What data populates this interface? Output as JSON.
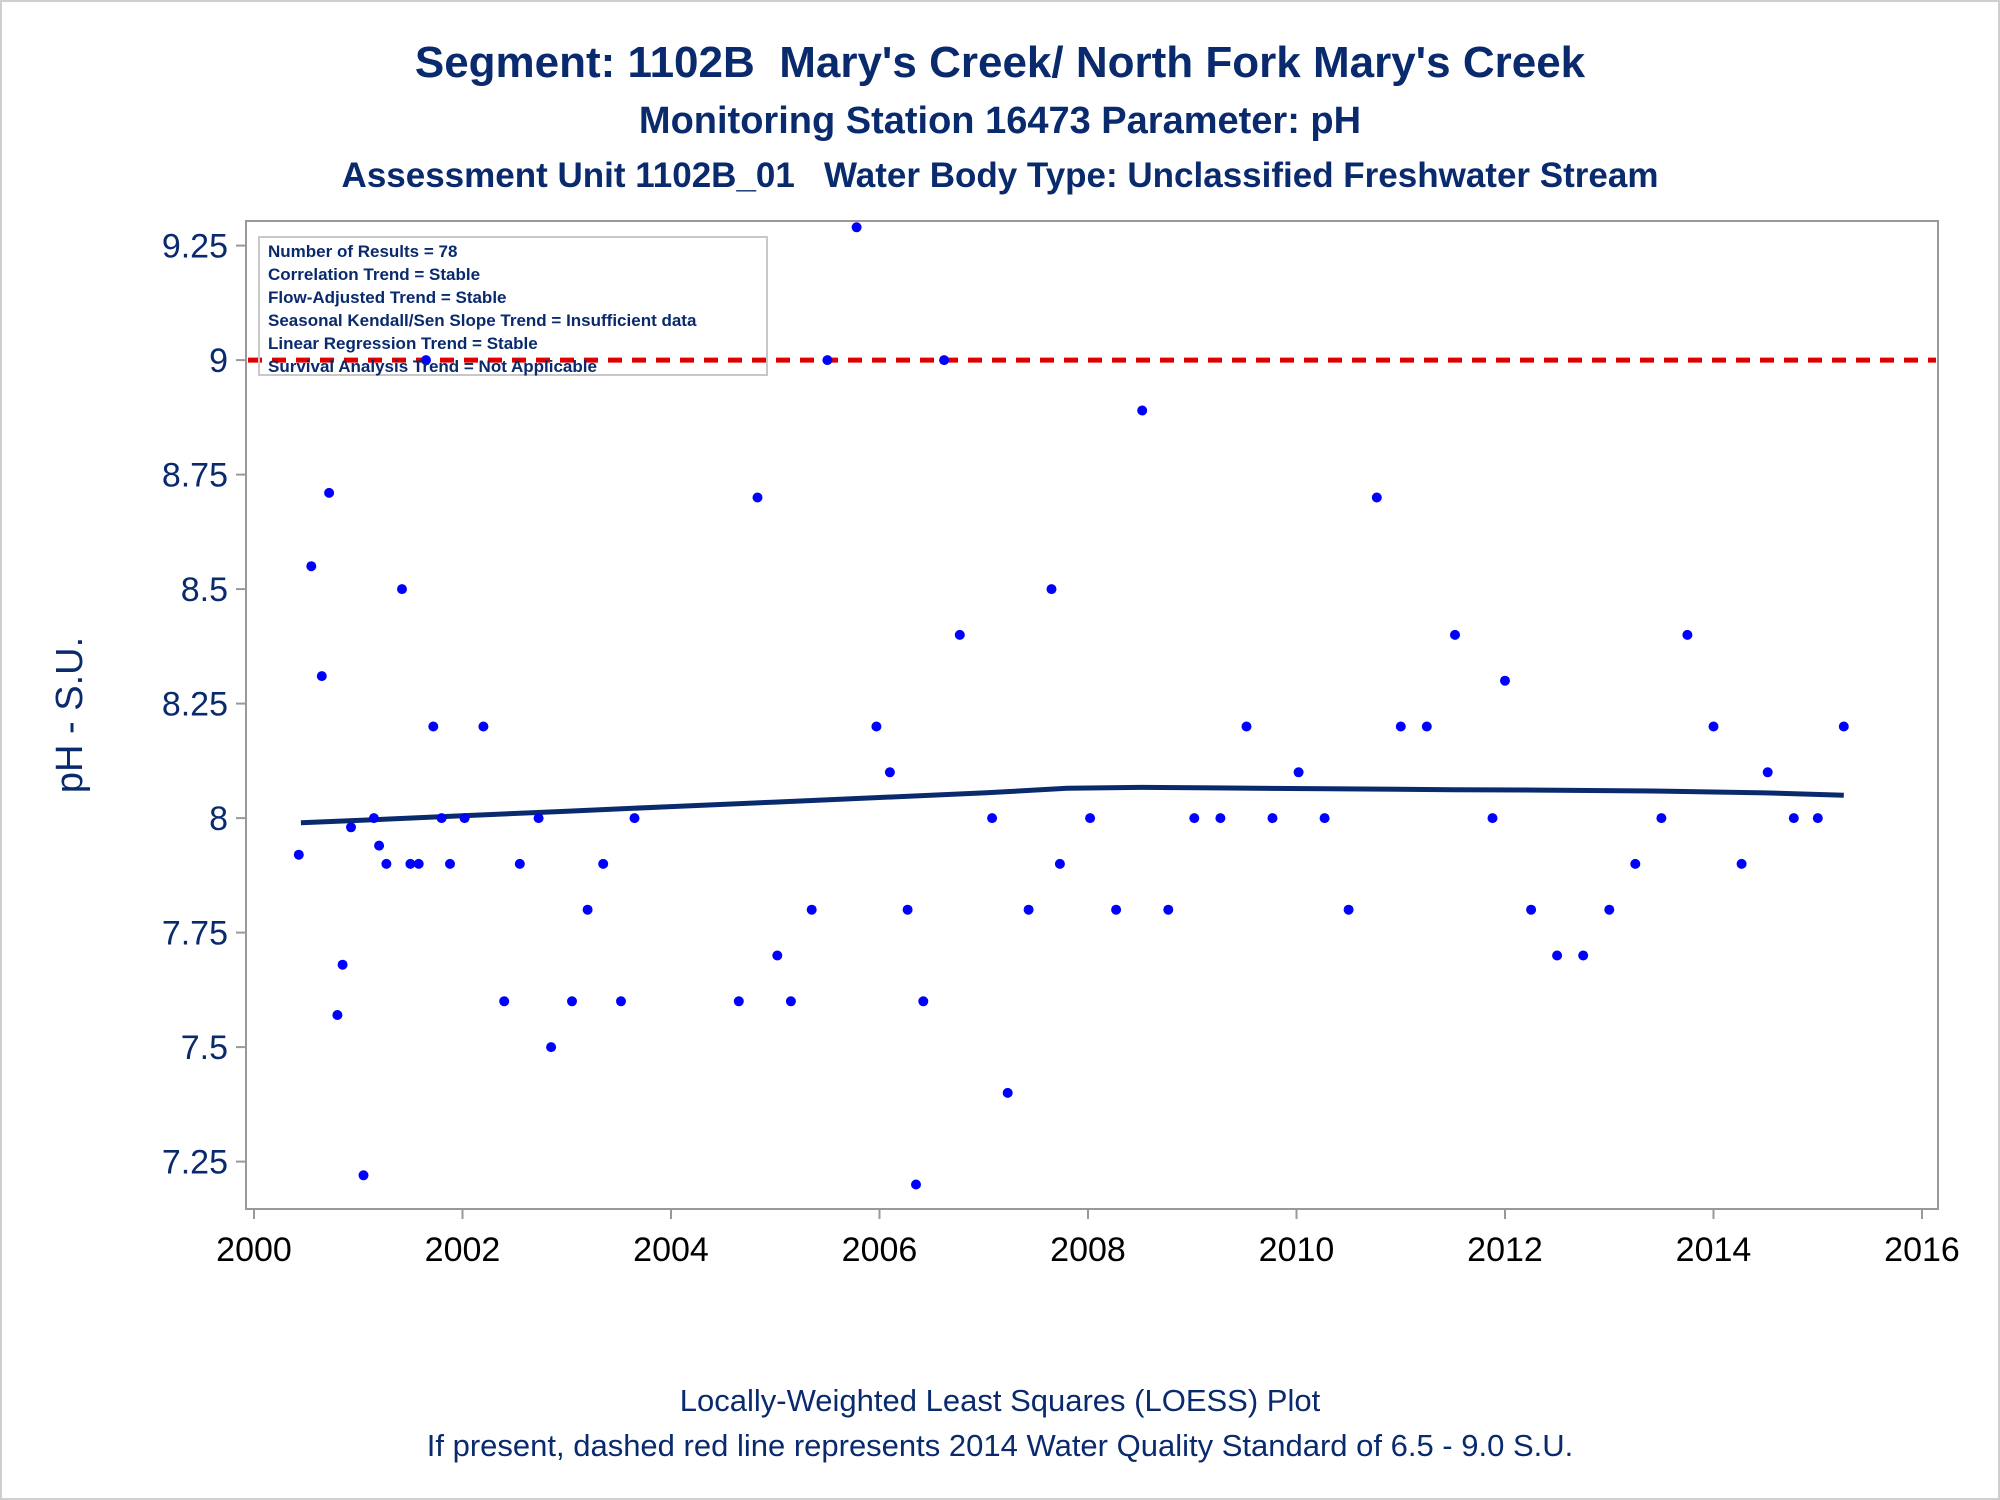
{
  "title": {
    "line1": "Segment: 1102B  Mary's Creek/ North Fork Mary's Creek",
    "line2": "Monitoring Station 16473 Parameter: pH",
    "line3": "Assessment Unit 1102B_01   Water Body Type: Unclassified Freshwater Stream"
  },
  "stats": [
    "Number of Results = 78",
    "Correlation Trend = Stable",
    "Flow-Adjusted Trend = Stable",
    "Seasonal Kendall/Sen Slope Trend = Insufficient data",
    "Linear Regression Trend = Stable",
    "Survival Analysis Trend = Not Applicable"
  ],
  "footnote": {
    "line1": "Locally-Weighted Least Squares (LOESS) Plot",
    "line2": "If present, dashed red line represents 2014 Water Quality Standard of 6.5 - 9.0 S.U."
  },
  "colors": {
    "text": "#0a2a6e",
    "points": "#0000ff",
    "loess": "#0a2a6e",
    "standard_line": "#e00000",
    "axis": "#999999"
  },
  "chart_data": {
    "type": "scatter",
    "xlabel": "",
    "ylabel": "pH - S.U.",
    "xlim": [
      2000,
      2016
    ],
    "ylim": [
      7.17,
      9.33
    ],
    "x_ticks": [
      "2000",
      "2002",
      "2004",
      "2006",
      "2008",
      "2010",
      "2012",
      "2014",
      "2016"
    ],
    "y_ticks": [
      "7.25",
      "7.5",
      "7.75",
      "8",
      "8.25",
      "8.5",
      "8.75",
      "9",
      "9.25"
    ],
    "grid": false,
    "reference_line": {
      "y": 9.0,
      "style": "dashed"
    },
    "points": [
      [
        2000.43,
        7.92
      ],
      [
        2000.55,
        8.55
      ],
      [
        2000.65,
        8.31
      ],
      [
        2000.72,
        8.71
      ],
      [
        2000.8,
        7.57
      ],
      [
        2000.85,
        7.68
      ],
      [
        2000.93,
        7.98
      ],
      [
        2001.05,
        7.22
      ],
      [
        2001.15,
        8.0
      ],
      [
        2001.2,
        7.94
      ],
      [
        2001.27,
        7.9
      ],
      [
        2001.42,
        8.5
      ],
      [
        2001.5,
        7.9
      ],
      [
        2001.58,
        7.9
      ],
      [
        2001.65,
        9.0
      ],
      [
        2001.72,
        8.2
      ],
      [
        2001.8,
        8.0
      ],
      [
        2001.88,
        7.9
      ],
      [
        2002.02,
        8.0
      ],
      [
        2002.2,
        8.2
      ],
      [
        2002.4,
        7.6
      ],
      [
        2002.55,
        7.9
      ],
      [
        2002.73,
        8.0
      ],
      [
        2002.85,
        7.5
      ],
      [
        2003.05,
        7.6
      ],
      [
        2003.2,
        7.8
      ],
      [
        2003.35,
        7.9
      ],
      [
        2003.52,
        7.6
      ],
      [
        2003.65,
        8.0
      ],
      [
        2004.65,
        7.6
      ],
      [
        2004.83,
        8.7
      ],
      [
        2005.02,
        7.7
      ],
      [
        2005.15,
        7.6
      ],
      [
        2005.35,
        7.8
      ],
      [
        2005.5,
        9.0
      ],
      [
        2005.78,
        9.29
      ],
      [
        2005.97,
        8.2
      ],
      [
        2006.1,
        8.1
      ],
      [
        2006.27,
        7.8
      ],
      [
        2006.35,
        7.2
      ],
      [
        2006.42,
        7.6
      ],
      [
        2006.62,
        9.0
      ],
      [
        2006.77,
        8.4
      ],
      [
        2007.08,
        8.0
      ],
      [
        2007.23,
        7.4
      ],
      [
        2007.43,
        7.8
      ],
      [
        2007.65,
        8.5
      ],
      [
        2007.73,
        7.9
      ],
      [
        2008.02,
        8.0
      ],
      [
        2008.27,
        7.8
      ],
      [
        2008.52,
        8.89
      ],
      [
        2008.77,
        7.8
      ],
      [
        2009.02,
        8.0
      ],
      [
        2009.27,
        8.0
      ],
      [
        2009.52,
        8.2
      ],
      [
        2009.77,
        8.0
      ],
      [
        2010.02,
        8.1
      ],
      [
        2010.27,
        8.0
      ],
      [
        2010.5,
        7.8
      ],
      [
        2010.77,
        8.7
      ],
      [
        2011.0,
        8.2
      ],
      [
        2011.25,
        8.2
      ],
      [
        2011.52,
        8.4
      ],
      [
        2011.88,
        8.0
      ],
      [
        2012.0,
        8.3
      ],
      [
        2012.25,
        7.8
      ],
      [
        2012.5,
        7.7
      ],
      [
        2012.75,
        7.7
      ],
      [
        2013.0,
        7.8
      ],
      [
        2013.25,
        7.9
      ],
      [
        2013.5,
        8.0
      ],
      [
        2013.75,
        8.4
      ],
      [
        2014.0,
        8.2
      ],
      [
        2014.27,
        7.9
      ],
      [
        2014.52,
        8.1
      ],
      [
        2014.77,
        8.0
      ],
      [
        2015.0,
        8.0
      ],
      [
        2015.25,
        8.2
      ]
    ],
    "loess": [
      [
        2000.45,
        7.99
      ],
      [
        2001.0,
        7.995
      ],
      [
        2002.0,
        8.005
      ],
      [
        2003.0,
        8.015
      ],
      [
        2004.0,
        8.025
      ],
      [
        2005.0,
        8.035
      ],
      [
        2006.0,
        8.045
      ],
      [
        2007.0,
        8.055
      ],
      [
        2007.8,
        8.065
      ],
      [
        2008.5,
        8.067
      ],
      [
        2009.2,
        8.066
      ],
      [
        2010.3,
        8.064
      ],
      [
        2011.5,
        8.062
      ],
      [
        2012.5,
        8.061
      ],
      [
        2013.5,
        8.059
      ],
      [
        2014.5,
        8.055
      ],
      [
        2015.25,
        8.05
      ]
    ]
  }
}
